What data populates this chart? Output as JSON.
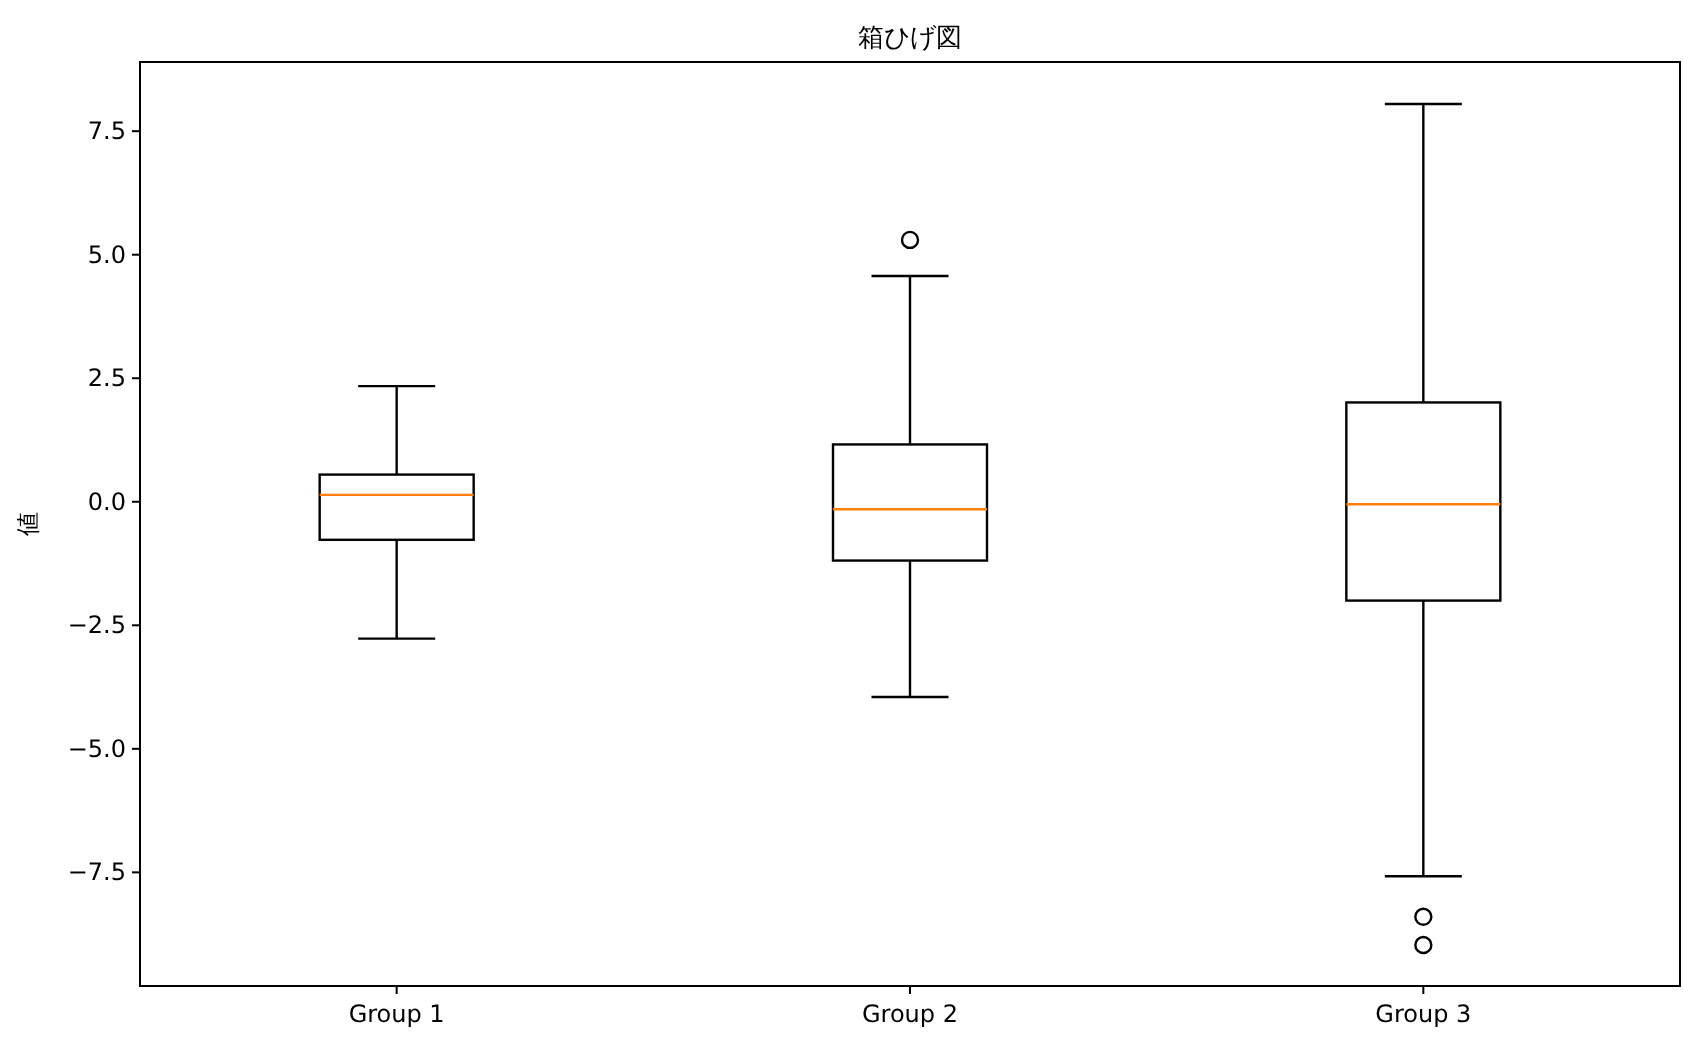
{
  "chart_data": {
    "type": "box",
    "title": "箱ひげ図",
    "ylabel": "値",
    "categories": [
      "Group 1",
      "Group 2",
      "Group 3"
    ],
    "boxes": [
      {
        "low": -2.77,
        "q1": -0.77,
        "median": 0.14,
        "q3": 0.55,
        "high": 2.34
      },
      {
        "low": -3.95,
        "q1": -1.19,
        "median": -0.15,
        "q3": 1.16,
        "high": 4.57,
        "outliers": [
          5.3
        ]
      },
      {
        "low": -7.58,
        "q1": -2.0,
        "median": -0.05,
        "q3": 2.01,
        "high": 8.05,
        "outliers": [
          -8.4,
          -8.97
        ]
      }
    ],
    "marker": "circle",
    "ylim": [
      -9.8,
      8.9
    ],
    "yticks": [
      {
        "value": -7.5,
        "label": "−7.5"
      },
      {
        "value": -5,
        "label": "−5.0"
      },
      {
        "value": -2.5,
        "label": "−2.5"
      },
      {
        "value": 0,
        "label": "0.0"
      },
      {
        "value": 2.5,
        "label": "2.5"
      },
      {
        "value": 5,
        "label": "5.0"
      },
      {
        "value": 7.5,
        "label": "7.5"
      }
    ]
  }
}
